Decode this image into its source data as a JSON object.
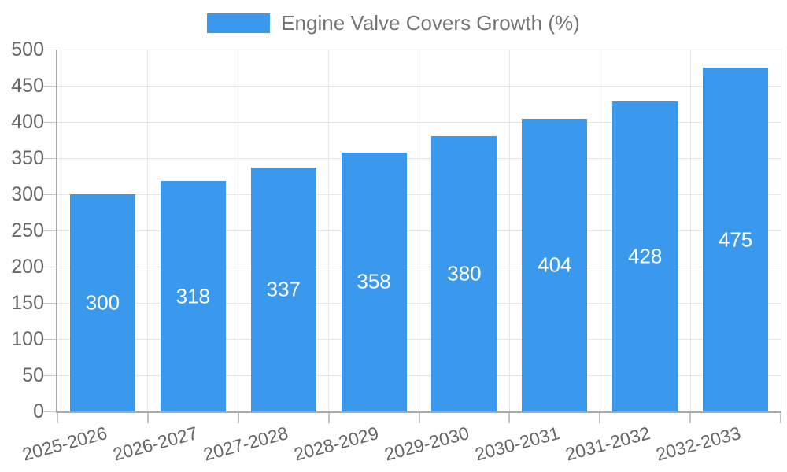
{
  "chart_data": {
    "type": "bar",
    "legend_label": "Engine Valve Covers Growth (%)",
    "categories": [
      "2025-2026",
      "2026-2027",
      "2027-2028",
      "2028-2029",
      "2029-2030",
      "2030-2031",
      "2031-2032",
      "2032-2033"
    ],
    "series": [
      {
        "name": "Engine Valve Covers Growth (%)",
        "values": [
          300,
          318,
          337,
          358,
          380,
          404,
          428,
          475
        ]
      }
    ],
    "ylim": [
      0,
      500
    ],
    "ytick_step": 50,
    "ytick_labels": [
      "0",
      "50",
      "100",
      "150",
      "200",
      "250",
      "300",
      "350",
      "400",
      "450",
      "500"
    ],
    "grid": true,
    "legend_position": "top-center",
    "xtick_rotation_deg": -15,
    "colors": {
      "bar": "#3a99ec",
      "grid": "#e6e6e6",
      "axis": "#a9a9a9",
      "tick": "#c2c2c2",
      "tick_label": "#666666",
      "legend_text": "#757575",
      "value_label": "#ffffff",
      "background": "#ffffff"
    }
  }
}
